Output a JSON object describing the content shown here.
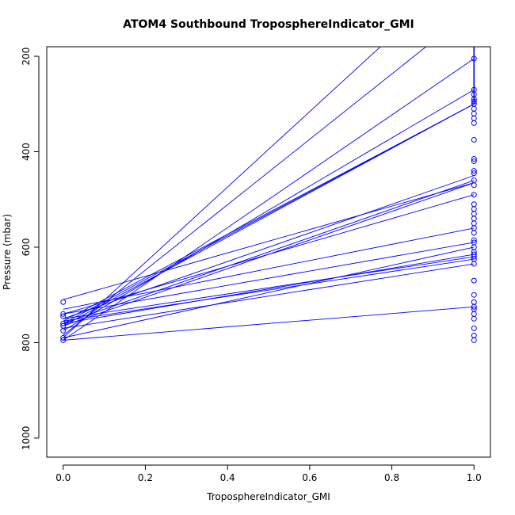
{
  "chart_data": {
    "type": "line",
    "title": "ATOM4 Southbound TroposphereIndicator_GMI",
    "xlabel": "TroposphereIndicator_GMI",
    "ylabel": "Pressure (mbar)",
    "xlim": [
      -0.04,
      1.04
    ],
    "ylim": [
      1040,
      180
    ],
    "y_reversed": true,
    "x_ticks": [
      0.0,
      0.2,
      0.4,
      0.6,
      0.8,
      1.0
    ],
    "x_tick_labels": [
      "0.0",
      "0.2",
      "0.4",
      "0.6",
      "0.8",
      "1.0"
    ],
    "y_ticks": [
      200,
      400,
      600,
      800,
      1000
    ],
    "y_tick_labels": [
      "200",
      "400",
      "600",
      "800",
      "1000"
    ],
    "grid": false,
    "color": "#0000ff",
    "segments": [
      {
        "x": [
          0,
          1
        ],
        "y": [
          795,
          205
        ]
      },
      {
        "x": [
          0,
          1
        ],
        "y": [
          790,
          0
        ]
      },
      {
        "x": [
          0,
          1
        ],
        "y": [
          785,
          100
        ]
      },
      {
        "x": [
          0,
          1
        ],
        "y": [
          775,
          270
        ]
      },
      {
        "x": [
          0,
          1
        ],
        "y": [
          765,
          300
        ]
      },
      {
        "x": [
          0,
          1
        ],
        "y": [
          760,
          300
        ]
      },
      {
        "x": [
          0,
          1
        ],
        "y": [
          755,
          300
        ]
      },
      {
        "x": [
          0,
          1
        ],
        "y": [
          750,
          450
        ]
      },
      {
        "x": [
          0,
          1
        ],
        "y": [
          760,
          460
        ]
      },
      {
        "x": [
          0,
          1
        ],
        "y": [
          765,
          465
        ]
      },
      {
        "x": [
          0,
          1
        ],
        "y": [
          740,
          490
        ]
      },
      {
        "x": [
          0,
          1
        ],
        "y": [
          710,
          465
        ]
      },
      {
        "x": [
          0,
          1
        ],
        "y": [
          730,
          560
        ]
      },
      {
        "x": [
          0,
          1
        ],
        "y": [
          740,
          590
        ]
      },
      {
        "x": [
          0,
          1
        ],
        "y": [
          760,
          615
        ]
      },
      {
        "x": [
          0,
          1
        ],
        "y": [
          750,
          620
        ]
      },
      {
        "x": [
          0,
          1
        ],
        "y": [
          755,
          625
        ]
      },
      {
        "x": [
          0,
          1
        ],
        "y": [
          770,
          635
        ]
      },
      {
        "x": [
          0,
          1
        ],
        "y": [
          790,
          600
        ]
      },
      {
        "x": [
          0,
          1
        ],
        "y": [
          795,
          725
        ]
      }
    ],
    "points_x0": [
      715,
      740,
      745,
      760,
      765,
      775,
      790,
      795
    ],
    "points_x1": [
      205,
      270,
      280,
      290,
      295,
      300,
      310,
      320,
      330,
      340,
      375,
      415,
      420,
      440,
      445,
      460,
      470,
      490,
      510,
      520,
      530,
      540,
      550,
      560,
      570,
      585,
      590,
      600,
      610,
      615,
      620,
      625,
      635,
      670,
      700,
      715,
      725,
      730,
      740,
      750,
      770,
      785,
      795
    ]
  }
}
